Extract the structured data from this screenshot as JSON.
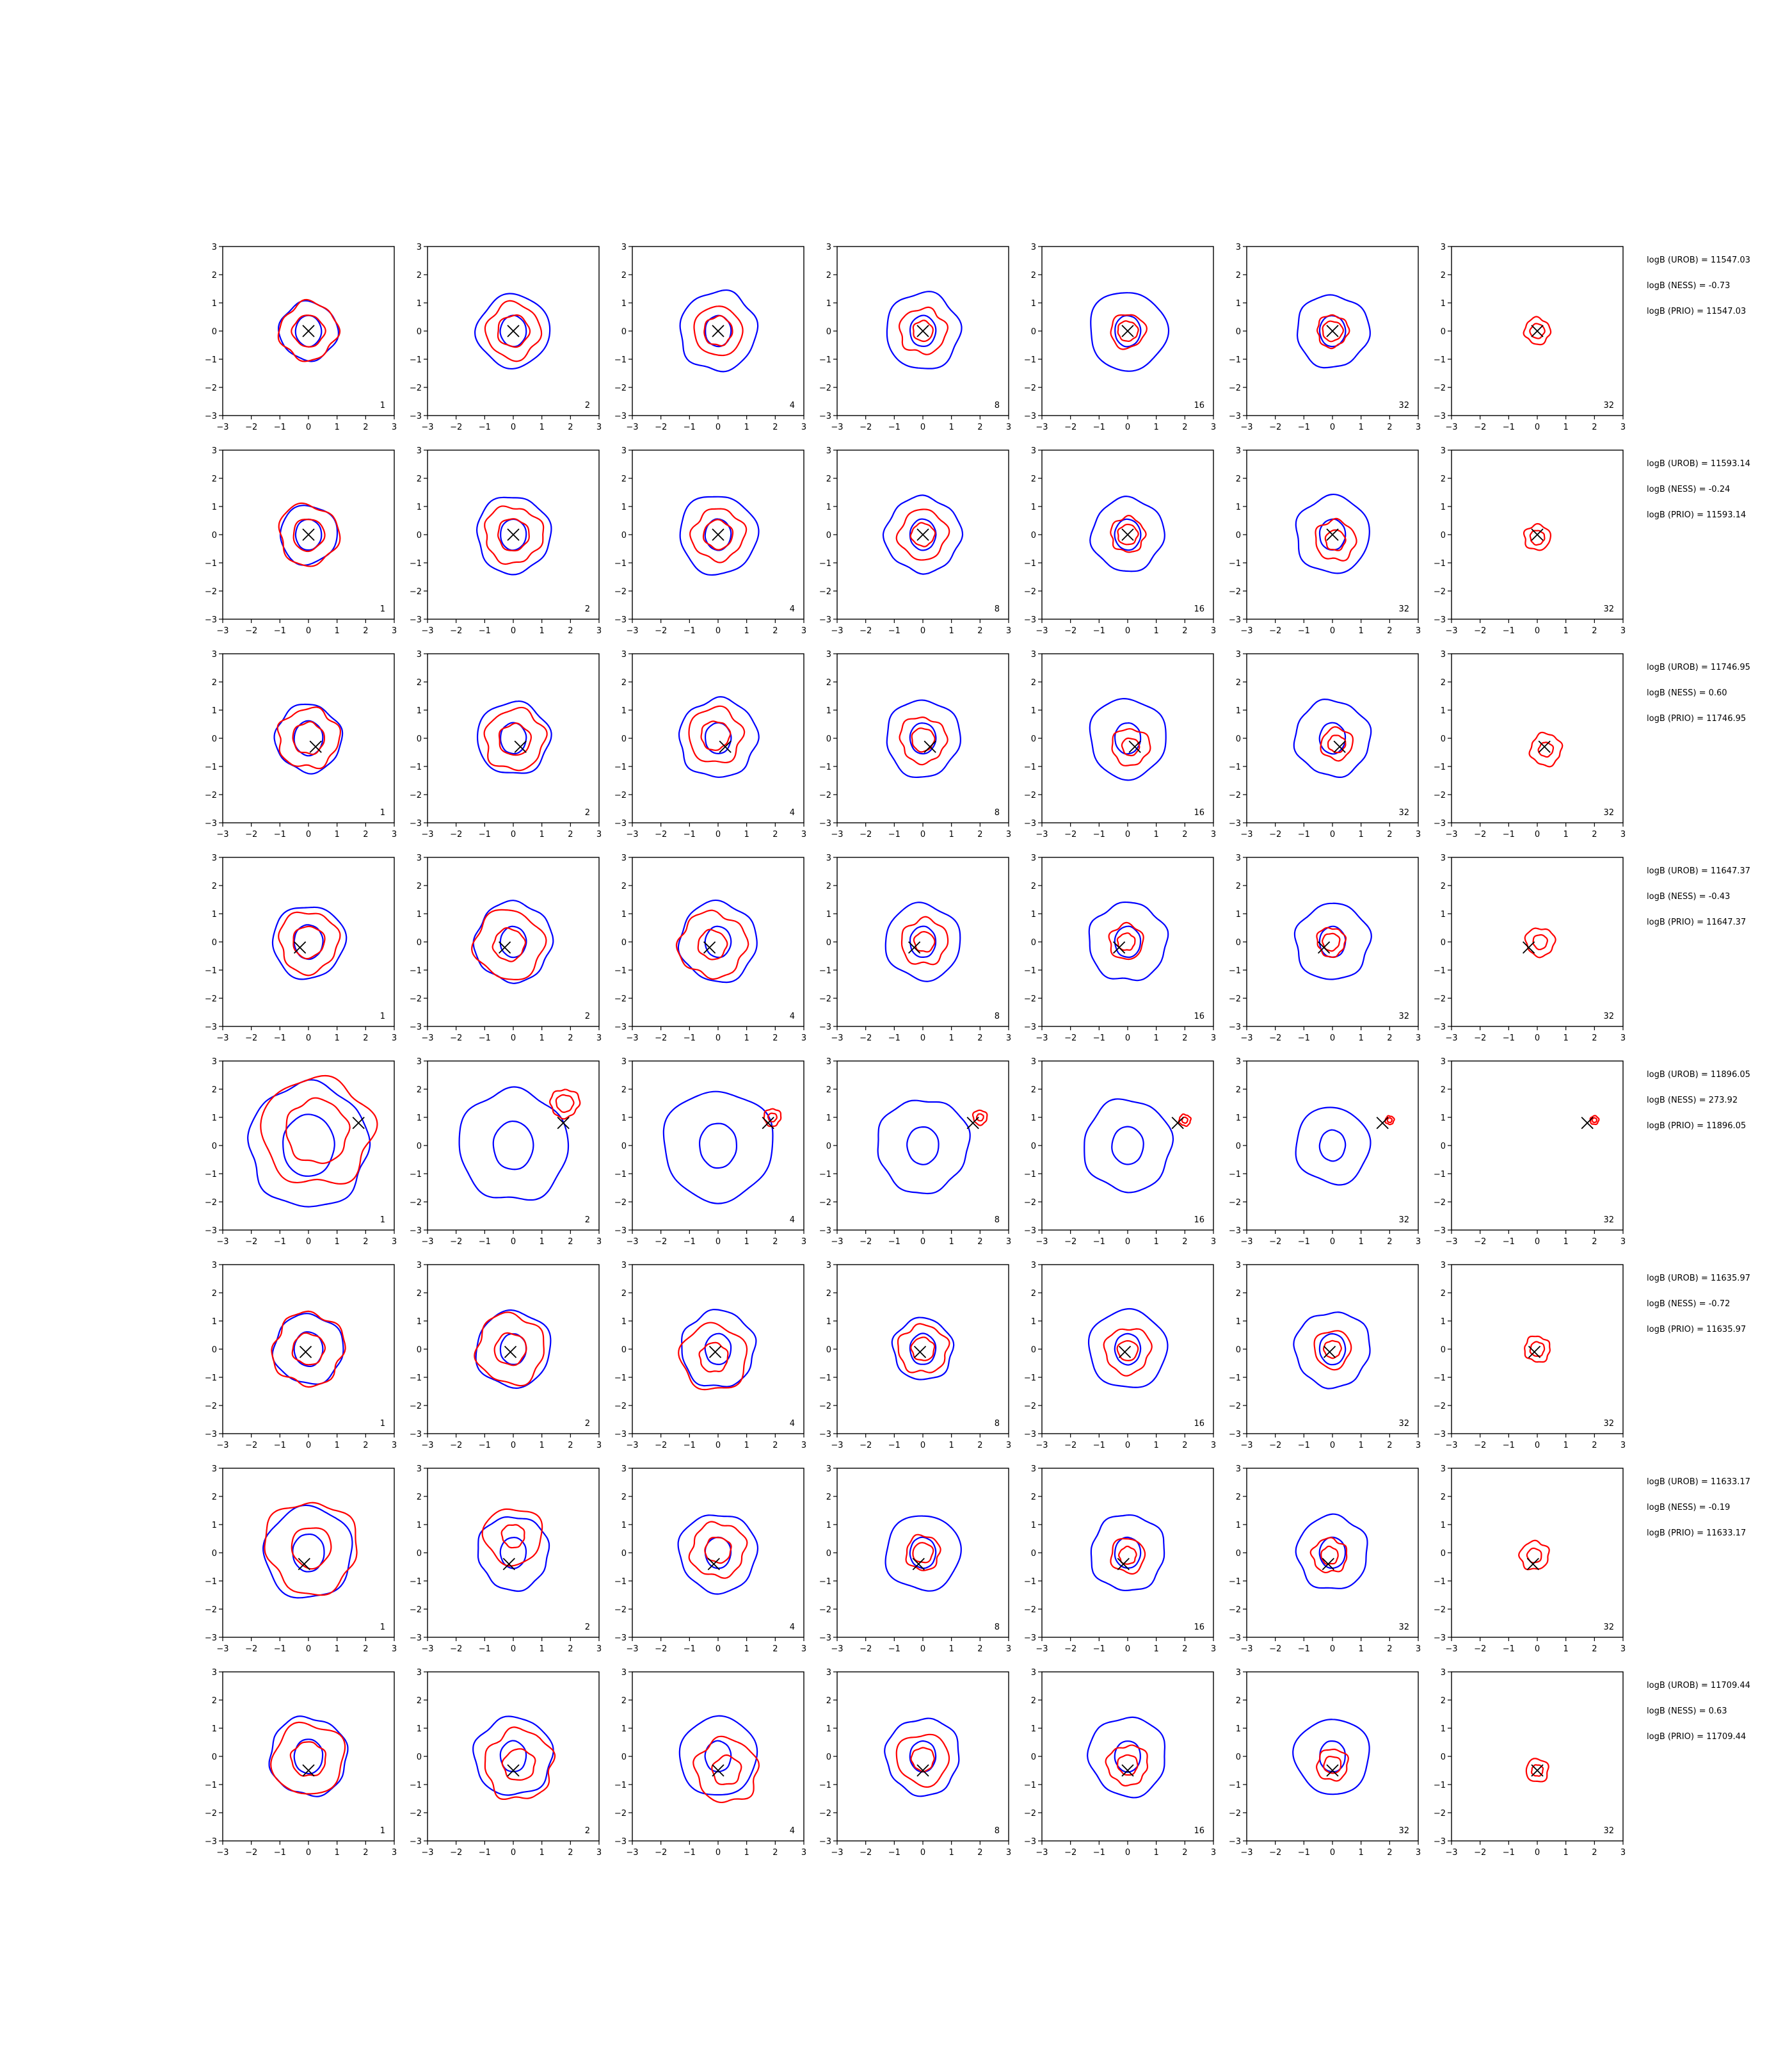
{
  "colors": {
    "outer_contour": "#0000ff",
    "inner_contour": "#ff0000",
    "marker": "#000000",
    "axes": "#000000"
  },
  "axis": {
    "xlim": [
      -3,
      3
    ],
    "ylim": [
      -3,
      3
    ],
    "ticks": [
      "−3",
      "−2",
      "−1",
      "0",
      "1",
      "2",
      "3"
    ]
  },
  "chart_data": {
    "type": "contour",
    "grid": false,
    "rows": [
      {
        "stats": [
          "logB (UROB) = 11547.03",
          "logB (NESS) = -0.73",
          "logB (PRIO) = 11547.03"
        ],
        "marker": [
          0.0,
          0.0
        ],
        "panels": [
          {
            "label": "1",
            "blue": [
              1.0,
              0.45
            ],
            "red": [
              1.0,
              0.55
            ],
            "red_center": [
              0.0,
              0.0
            ]
          },
          {
            "label": "2",
            "blue": [
              1.25,
              0.45
            ],
            "red": [
              0.95,
              0.55
            ],
            "red_center": [
              0.0,
              0.0
            ]
          },
          {
            "label": "4",
            "blue": [
              1.35,
              0.45
            ],
            "red": [
              0.85,
              0.5
            ],
            "red_center": [
              0.0,
              0.0
            ]
          },
          {
            "label": "8",
            "blue": [
              1.3,
              0.45
            ],
            "red": [
              0.8,
              0.35
            ],
            "red_center": [
              0.0,
              0.0
            ]
          },
          {
            "label": "16",
            "blue": [
              1.35,
              0.45
            ],
            "red": [
              0.6,
              0.35
            ],
            "red_center": [
              0.0,
              0.0
            ]
          },
          {
            "label": "32",
            "blue": [
              1.25,
              0.45
            ],
            "red": [
              0.55,
              0.35
            ],
            "red_center": [
              0.0,
              0.0
            ]
          },
          {
            "label": "32",
            "blue": null,
            "red": [
              0.45,
              0.25
            ],
            "red_center": [
              0.0,
              0.0
            ]
          }
        ]
      },
      {
        "stats": [
          "logB (UROB) = 11593.14",
          "logB (NESS) = -0.24",
          "logB (PRIO) = 11593.14"
        ],
        "marker": [
          0.0,
          0.0
        ],
        "panels": [
          {
            "label": "1",
            "blue": [
              1.0,
              0.45
            ],
            "red": [
              1.05,
              0.55
            ],
            "red_center": [
              0.0,
              0.0
            ]
          },
          {
            "label": "2",
            "blue": [
              1.3,
              0.45
            ],
            "red": [
              1.0,
              0.55
            ],
            "red_center": [
              0.0,
              0.0
            ]
          },
          {
            "label": "4",
            "blue": [
              1.35,
              0.45
            ],
            "red": [
              0.9,
              0.5
            ],
            "red_center": [
              0.0,
              0.0
            ]
          },
          {
            "label": "8",
            "blue": [
              1.3,
              0.45
            ],
            "red": [
              0.85,
              0.4
            ],
            "red_center": [
              0.0,
              0.0
            ]
          },
          {
            "label": "16",
            "blue": [
              1.25,
              0.45
            ],
            "red": [
              0.6,
              0.35
            ],
            "red_center": [
              0.0,
              0.0
            ]
          },
          {
            "label": "32",
            "blue": [
              1.3,
              0.45
            ],
            "red": [
              0.7,
              0.35
            ],
            "red_center": [
              0.1,
              -0.2
            ]
          },
          {
            "label": "32",
            "blue": null,
            "red": [
              0.45,
              0.25
            ],
            "red_center": [
              0.0,
              -0.1
            ]
          }
        ]
      },
      {
        "stats": [
          "logB (UROB) = 11746.95",
          "logB (NESS) = 0.60",
          "logB (PRIO) = 11746.95"
        ],
        "marker": [
          0.25,
          -0.3
        ],
        "panels": [
          {
            "label": "1",
            "blue": [
              1.15,
              0.5
            ],
            "red": [
              1.05,
              0.55
            ],
            "red_center": [
              0.0,
              0.0
            ]
          },
          {
            "label": "2",
            "blue": [
              1.25,
              0.45
            ],
            "red": [
              1.05,
              0.55
            ],
            "red_center": [
              0.05,
              -0.05
            ]
          },
          {
            "label": "4",
            "blue": [
              1.35,
              0.45
            ],
            "red": [
              0.95,
              0.5
            ],
            "red_center": [
              -0.1,
              0.1
            ]
          },
          {
            "label": "8",
            "blue": [
              1.3,
              0.45
            ],
            "red": [
              0.8,
              0.4
            ],
            "red_center": [
              0.0,
              -0.05
            ]
          },
          {
            "label": "16",
            "blue": [
              1.35,
              0.45
            ],
            "red": [
              0.65,
              0.3
            ],
            "red_center": [
              0.1,
              -0.3
            ]
          },
          {
            "label": "32",
            "blue": [
              1.3,
              0.45
            ],
            "red": [
              0.55,
              0.3
            ],
            "red_center": [
              0.15,
              -0.2
            ]
          },
          {
            "label": "32",
            "blue": null,
            "red": [
              0.55,
              0.25
            ],
            "red_center": [
              0.3,
              -0.4
            ]
          }
        ]
      },
      {
        "stats": [
          "logB (UROB) = 11647.37",
          "logB (NESS) = -0.43",
          "logB (PRIO) = 11647.37"
        ],
        "marker": [
          -0.3,
          -0.2
        ],
        "panels": [
          {
            "label": "1",
            "blue": [
              1.25,
              0.5
            ],
            "red": [
              1.05,
              0.55
            ],
            "red_center": [
              0.0,
              0.0
            ]
          },
          {
            "label": "2",
            "blue": [
              1.35,
              0.45
            ],
            "red": [
              1.2,
              0.55
            ],
            "red_center": [
              -0.15,
              -0.1
            ]
          },
          {
            "label": "4",
            "blue": [
              1.35,
              0.45
            ],
            "red": [
              1.15,
              0.5
            ],
            "red_center": [
              -0.2,
              -0.1
            ]
          },
          {
            "label": "8",
            "blue": [
              1.3,
              0.45
            ],
            "red": [
              0.8,
              0.35
            ],
            "red_center": [
              0.05,
              0.0
            ]
          },
          {
            "label": "16",
            "blue": [
              1.35,
              0.45
            ],
            "red": [
              0.6,
              0.3
            ],
            "red_center": [
              -0.05,
              0.0
            ]
          },
          {
            "label": "32",
            "blue": [
              1.3,
              0.45
            ],
            "red": [
              0.5,
              0.3
            ],
            "red_center": [
              -0.05,
              0.0
            ]
          },
          {
            "label": "32",
            "blue": null,
            "red": [
              0.5,
              0.25
            ],
            "red_center": [
              0.1,
              0.0
            ]
          }
        ]
      },
      {
        "stats": [
          "logB (UROB) = 11896.05",
          "logB (NESS) = 273.92",
          "logB (PRIO) = 11896.05"
        ],
        "marker": [
          1.75,
          0.8
        ],
        "panels": [
          {
            "label": "1",
            "blue": [
              2.1,
              0.9
            ],
            "red": [
              1.9,
              1.1
            ],
            "red_center": [
              0.3,
              0.5
            ]
          },
          {
            "label": "2",
            "blue": [
              1.9,
              0.7
            ],
            "red": [
              0.5,
              0.3
            ],
            "red_center": [
              1.8,
              1.5
            ]
          },
          {
            "label": "4",
            "blue": [
              1.9,
              0.65
            ],
            "red": [
              0.3,
              0.15
            ],
            "red_center": [
              1.9,
              1.0
            ]
          },
          {
            "label": "8",
            "blue": [
              1.6,
              0.55
            ],
            "red": [
              0.25,
              0.12
            ],
            "red_center": [
              2.0,
              1.0
            ]
          },
          {
            "label": "16",
            "blue": [
              1.55,
              0.55
            ],
            "red": [
              0.2,
              0.1
            ],
            "red_center": [
              2.0,
              0.9
            ]
          },
          {
            "label": "32",
            "blue": [
              1.3,
              0.45
            ],
            "red": [
              0.15,
              0.08
            ],
            "red_center": [
              2.0,
              0.9
            ]
          },
          {
            "label": "32",
            "blue": null,
            "red": [
              0.15,
              0.08
            ],
            "red_center": [
              2.0,
              0.9
            ]
          }
        ]
      },
      {
        "stats": [
          "logB (UROB) = 11635.97",
          "logB (NESS) = -0.72",
          "logB (PRIO) = 11635.97"
        ],
        "marker": [
          -0.1,
          -0.1
        ],
        "panels": [
          {
            "label": "1",
            "blue": [
              1.2,
              0.5
            ],
            "red": [
              1.25,
              0.55
            ],
            "red_center": [
              0.0,
              0.0
            ]
          },
          {
            "label": "2",
            "blue": [
              1.3,
              0.45
            ],
            "red": [
              1.2,
              0.55
            ],
            "red_center": [
              -0.1,
              0.0
            ]
          },
          {
            "label": "4",
            "blue": [
              1.3,
              0.45
            ],
            "red": [
              1.15,
              0.5
            ],
            "red_center": [
              -0.15,
              -0.3
            ]
          },
          {
            "label": "8",
            "blue": [
              1.05,
              0.45
            ],
            "red": [
              0.85,
              0.4
            ],
            "red_center": [
              0.0,
              0.0
            ]
          },
          {
            "label": "16",
            "blue": [
              1.35,
              0.45
            ],
            "red": [
              0.8,
              0.35
            ],
            "red_center": [
              0.0,
              -0.05
            ]
          },
          {
            "label": "32",
            "blue": [
              1.3,
              0.45
            ],
            "red": [
              0.65,
              0.3
            ],
            "red_center": [
              0.0,
              0.0
            ]
          },
          {
            "label": "32",
            "blue": null,
            "red": [
              0.45,
              0.25
            ],
            "red_center": [
              0.0,
              0.0
            ]
          }
        ]
      },
      {
        "stats": [
          "logB (UROB) = 11633.17",
          "logB (NESS) = -0.19",
          "logB (PRIO) = 11633.17"
        ],
        "marker": [
          -0.15,
          -0.4
        ],
        "panels": [
          {
            "label": "1",
            "blue": [
              1.55,
              0.55
            ],
            "red": [
              1.6,
              0.7
            ],
            "red_center": [
              0.1,
              0.2
            ]
          },
          {
            "label": "2",
            "blue": [
              1.25,
              0.45
            ],
            "red": [
              1.0,
              0.4
            ],
            "red_center": [
              0.0,
              0.6
            ]
          },
          {
            "label": "4",
            "blue": [
              1.35,
              0.45
            ],
            "red": [
              0.95,
              0.45
            ],
            "red_center": [
              0.0,
              0.1
            ]
          },
          {
            "label": "8",
            "blue": [
              1.3,
              0.45
            ],
            "red": [
              0.6,
              0.35
            ],
            "red_center": [
              0.0,
              0.0
            ]
          },
          {
            "label": "16",
            "blue": [
              1.3,
              0.45
            ],
            "red": [
              0.6,
              0.3
            ],
            "red_center": [
              0.0,
              -0.1
            ]
          },
          {
            "label": "32",
            "blue": [
              1.25,
              0.45
            ],
            "red": [
              0.6,
              0.3
            ],
            "red_center": [
              -0.1,
              -0.1
            ]
          },
          {
            "label": "32",
            "blue": null,
            "red": [
              0.5,
              0.25
            ],
            "red_center": [
              -0.1,
              -0.1
            ]
          }
        ]
      },
      {
        "stats": [
          "logB (UROB) = 11709.44",
          "logB (NESS) = 0.63",
          "logB (PRIO) = 11709.44"
        ],
        "marker": [
          0.0,
          -0.5
        ],
        "panels": [
          {
            "label": "1",
            "blue": [
              1.35,
              0.5
            ],
            "red": [
              1.25,
              0.6
            ],
            "red_center": [
              0.0,
              -0.1
            ]
          },
          {
            "label": "2",
            "blue": [
              1.35,
              0.45
            ],
            "red": [
              1.2,
              0.55
            ],
            "red_center": [
              0.2,
              -0.3
            ]
          },
          {
            "label": "4",
            "blue": [
              1.35,
              0.45
            ],
            "red": [
              1.1,
              0.5
            ],
            "red_center": [
              0.3,
              -0.5
            ]
          },
          {
            "label": "8",
            "blue": [
              1.3,
              0.45
            ],
            "red": [
              0.9,
              0.4
            ],
            "red_center": [
              0.0,
              -0.1
            ]
          },
          {
            "label": "16",
            "blue": [
              1.35,
              0.45
            ],
            "red": [
              0.7,
              0.35
            ],
            "red_center": [
              0.0,
              -0.3
            ]
          },
          {
            "label": "32",
            "blue": [
              1.3,
              0.45
            ],
            "red": [
              0.55,
              0.3
            ],
            "red_center": [
              0.0,
              -0.3
            ]
          },
          {
            "label": "32",
            "blue": null,
            "red": [
              0.4,
              0.2
            ],
            "red_center": [
              0.0,
              -0.5
            ]
          }
        ]
      }
    ]
  }
}
